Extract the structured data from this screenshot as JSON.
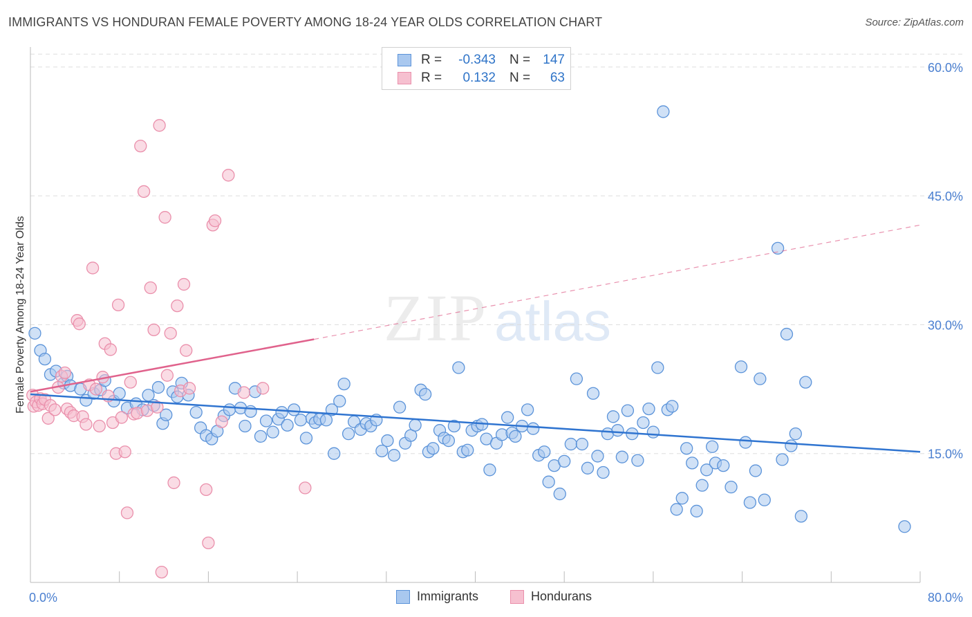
{
  "title": "IMMIGRANTS VS HONDURAN FEMALE POVERTY AMONG 18-24 YEAR OLDS CORRELATION CHART",
  "source": "Source: ZipAtlas.com",
  "watermark": {
    "zip": "ZIP",
    "atlas": "atlas"
  },
  "colors": {
    "immigrants_fill": "#a9c8ef",
    "immigrants_stroke": "#5b93d9",
    "immigrants_line": "#2f74d0",
    "hondurans_fill": "#f6c0d0",
    "hondurans_stroke": "#ea8fab",
    "hondurans_line": "#e0628c",
    "tick_text": "#4a7fd0",
    "grid": "#dddddd"
  },
  "legend": {
    "rows": [
      {
        "r_label": "R =",
        "r_value": "-0.343",
        "n_label": "N =",
        "n_value": "147"
      },
      {
        "r_label": "R =",
        "r_value": "0.132",
        "n_label": "N =",
        "n_value": "63"
      }
    ]
  },
  "chart_data": {
    "type": "scatter",
    "title": "IMMIGRANTS VS HONDURAN FEMALE POVERTY AMONG 18-24 YEAR OLDS CORRELATION CHART",
    "xlabel": "",
    "ylabel": "Female Poverty Among 18-24 Year Olds",
    "xlim": [
      0,
      80
    ],
    "ylim": [
      0,
      62
    ],
    "x_tick_labels": [
      "0.0%",
      "80.0%"
    ],
    "y_ticks": [
      15,
      30,
      45,
      60
    ],
    "y_tick_labels": [
      "15.0%",
      "30.0%",
      "45.0%",
      "60.0%"
    ],
    "grid": true,
    "legend_position": "bottom",
    "series": [
      {
        "name": "Immigrants",
        "r": -0.343,
        "n": 147,
        "trend": {
          "x": [
            0,
            80
          ],
          "y": [
            21.9,
            15.2
          ],
          "style": "solid"
        },
        "points": [
          [
            0.4,
            29
          ],
          [
            0.9,
            27
          ],
          [
            1.3,
            26
          ],
          [
            1.8,
            24.2
          ],
          [
            2.3,
            24.6
          ],
          [
            3.0,
            23.2
          ],
          [
            3.3,
            24.0
          ],
          [
            3.6,
            22.9
          ],
          [
            4.5,
            22.5
          ],
          [
            5.0,
            21.2
          ],
          [
            5.7,
            22.0
          ],
          [
            6.3,
            22.4
          ],
          [
            6.7,
            23.5
          ],
          [
            7.5,
            21.1
          ],
          [
            8.0,
            22.0
          ],
          [
            8.7,
            20.3
          ],
          [
            9.5,
            20.8
          ],
          [
            10.1,
            20.1
          ],
          [
            10.6,
            21.8
          ],
          [
            11.1,
            20.6
          ],
          [
            11.5,
            22.7
          ],
          [
            11.9,
            18.5
          ],
          [
            12.2,
            19.5
          ],
          [
            12.8,
            22.2
          ],
          [
            13.2,
            21.6
          ],
          [
            13.6,
            23.2
          ],
          [
            14.2,
            21.8
          ],
          [
            14.9,
            19.8
          ],
          [
            15.3,
            18.0
          ],
          [
            15.8,
            17.1
          ],
          [
            16.3,
            16.7
          ],
          [
            16.8,
            17.6
          ],
          [
            17.4,
            19.4
          ],
          [
            17.9,
            20.1
          ],
          [
            18.4,
            22.6
          ],
          [
            18.9,
            20.3
          ],
          [
            19.3,
            18.2
          ],
          [
            19.8,
            19.9
          ],
          [
            20.2,
            22.2
          ],
          [
            20.7,
            17.0
          ],
          [
            21.2,
            18.8
          ],
          [
            21.8,
            17.5
          ],
          [
            22.3,
            19.0
          ],
          [
            22.6,
            19.8
          ],
          [
            23.1,
            18.3
          ],
          [
            23.7,
            20.1
          ],
          [
            24.3,
            18.9
          ],
          [
            24.8,
            16.8
          ],
          [
            25.3,
            19.1
          ],
          [
            25.6,
            18.6
          ],
          [
            26.0,
            19.0
          ],
          [
            26.6,
            18.9
          ],
          [
            27.1,
            20.1
          ],
          [
            27.3,
            15.0
          ],
          [
            27.8,
            21.1
          ],
          [
            28.2,
            23.1
          ],
          [
            28.6,
            17.3
          ],
          [
            29.1,
            18.7
          ],
          [
            29.7,
            17.8
          ],
          [
            30.2,
            18.5
          ],
          [
            30.6,
            18.2
          ],
          [
            31.1,
            18.9
          ],
          [
            31.6,
            15.3
          ],
          [
            32.1,
            16.5
          ],
          [
            32.7,
            14.8
          ],
          [
            33.2,
            20.4
          ],
          [
            33.7,
            16.2
          ],
          [
            34.2,
            17.1
          ],
          [
            34.6,
            18.3
          ],
          [
            35.1,
            22.4
          ],
          [
            35.5,
            21.9
          ],
          [
            35.8,
            15.2
          ],
          [
            36.2,
            15.6
          ],
          [
            36.8,
            17.7
          ],
          [
            37.2,
            16.8
          ],
          [
            37.6,
            16.5
          ],
          [
            38.1,
            18.2
          ],
          [
            38.5,
            25.0
          ],
          [
            38.9,
            15.2
          ],
          [
            39.3,
            15.4
          ],
          [
            39.7,
            17.7
          ],
          [
            40.2,
            18.2
          ],
          [
            40.6,
            18.4
          ],
          [
            41.0,
            16.7
          ],
          [
            41.3,
            13.1
          ],
          [
            41.9,
            16.2
          ],
          [
            42.4,
            17.2
          ],
          [
            42.9,
            19.2
          ],
          [
            43.3,
            17.4
          ],
          [
            43.6,
            17.0
          ],
          [
            44.2,
            18.2
          ],
          [
            44.7,
            20.1
          ],
          [
            45.2,
            17.9
          ],
          [
            45.7,
            14.8
          ],
          [
            46.2,
            15.2
          ],
          [
            46.6,
            11.7
          ],
          [
            47.1,
            13.6
          ],
          [
            47.6,
            10.3
          ],
          [
            48.0,
            14.1
          ],
          [
            48.6,
            16.1
          ],
          [
            49.1,
            23.7
          ],
          [
            49.6,
            16.1
          ],
          [
            50.1,
            13.3
          ],
          [
            50.6,
            22.0
          ],
          [
            51.0,
            14.7
          ],
          [
            51.5,
            12.8
          ],
          [
            51.9,
            17.3
          ],
          [
            52.4,
            19.3
          ],
          [
            52.8,
            17.7
          ],
          [
            53.2,
            14.6
          ],
          [
            53.7,
            20.0
          ],
          [
            54.1,
            17.3
          ],
          [
            54.6,
            14.2
          ],
          [
            55.1,
            18.6
          ],
          [
            55.6,
            20.2
          ],
          [
            56.0,
            17.5
          ],
          [
            56.4,
            25.0
          ],
          [
            56.9,
            54.8
          ],
          [
            57.3,
            20.1
          ],
          [
            57.7,
            20.5
          ],
          [
            58.1,
            8.5
          ],
          [
            58.6,
            9.8
          ],
          [
            59.0,
            15.6
          ],
          [
            59.5,
            13.9
          ],
          [
            59.9,
            8.3
          ],
          [
            60.4,
            11.3
          ],
          [
            60.8,
            13.1
          ],
          [
            61.3,
            15.8
          ],
          [
            61.6,
            13.9
          ],
          [
            62.3,
            13.6
          ],
          [
            63.0,
            11.1
          ],
          [
            63.9,
            25.1
          ],
          [
            64.3,
            16.3
          ],
          [
            64.7,
            9.3
          ],
          [
            65.2,
            13.0
          ],
          [
            65.6,
            23.7
          ],
          [
            66.0,
            9.6
          ],
          [
            67.2,
            38.9
          ],
          [
            67.6,
            14.3
          ],
          [
            68.0,
            28.9
          ],
          [
            68.4,
            15.9
          ],
          [
            68.8,
            17.3
          ],
          [
            69.3,
            7.7
          ],
          [
            69.7,
            23.3
          ],
          [
            78.6,
            6.5
          ]
        ]
      },
      {
        "name": "Hondurans",
        "r": 0.132,
        "n": 63,
        "trend": {
          "x": [
            0,
            25.5,
            80
          ],
          "y": [
            22.2,
            28.3,
            41.6
          ],
          "style": "solid-then-dashed"
        },
        "points": [
          [
            0.2,
            21.8
          ],
          [
            0.3,
            20.5
          ],
          [
            0.5,
            21.0
          ],
          [
            0.7,
            20.6
          ],
          [
            0.9,
            21.4
          ],
          [
            1.1,
            20.8
          ],
          [
            1.3,
            21.3
          ],
          [
            1.6,
            19.1
          ],
          [
            1.8,
            20.6
          ],
          [
            2.2,
            20.1
          ],
          [
            2.5,
            22.7
          ],
          [
            2.8,
            24.0
          ],
          [
            3.1,
            24.4
          ],
          [
            3.3,
            20.2
          ],
          [
            3.6,
            19.8
          ],
          [
            3.9,
            19.4
          ],
          [
            4.2,
            30.5
          ],
          [
            4.4,
            30.1
          ],
          [
            4.7,
            19.3
          ],
          [
            5.0,
            18.4
          ],
          [
            5.3,
            23.0
          ],
          [
            5.6,
            36.6
          ],
          [
            5.9,
            22.5
          ],
          [
            6.2,
            18.2
          ],
          [
            6.5,
            23.9
          ],
          [
            6.7,
            27.8
          ],
          [
            7.0,
            21.7
          ],
          [
            7.2,
            27.1
          ],
          [
            7.4,
            18.6
          ],
          [
            7.7,
            15.0
          ],
          [
            7.9,
            32.3
          ],
          [
            8.2,
            19.2
          ],
          [
            8.5,
            15.2
          ],
          [
            8.7,
            8.1
          ],
          [
            9.0,
            23.3
          ],
          [
            9.3,
            19.6
          ],
          [
            9.6,
            19.7
          ],
          [
            9.9,
            50.8
          ],
          [
            10.2,
            45.5
          ],
          [
            10.5,
            20.0
          ],
          [
            10.8,
            34.3
          ],
          [
            11.1,
            29.4
          ],
          [
            11.4,
            20.4
          ],
          [
            11.8,
            1.2
          ],
          [
            11.6,
            53.2
          ],
          [
            12.1,
            42.5
          ],
          [
            12.3,
            24.1
          ],
          [
            12.6,
            29.0
          ],
          [
            12.9,
            11.6
          ],
          [
            13.2,
            32.2
          ],
          [
            13.5,
            22.3
          ],
          [
            13.8,
            34.7
          ],
          [
            14.0,
            27.0
          ],
          [
            14.3,
            22.6
          ],
          [
            16.0,
            4.6
          ],
          [
            15.8,
            10.8
          ],
          [
            16.4,
            41.6
          ],
          [
            16.6,
            42.1
          ],
          [
            17.2,
            18.7
          ],
          [
            17.8,
            47.4
          ],
          [
            19.2,
            22.1
          ],
          [
            20.9,
            22.6
          ],
          [
            24.7,
            11.0
          ]
        ]
      }
    ]
  },
  "bottom_legend": {
    "immigrants": "Immigrants",
    "hondurans": "Hondurans"
  }
}
